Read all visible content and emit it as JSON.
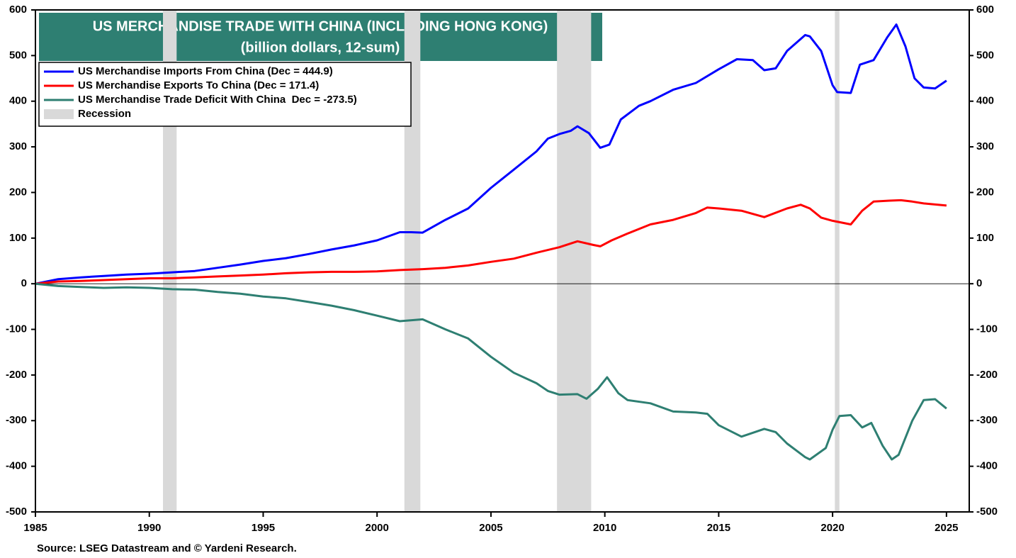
{
  "chart_data": {
    "type": "line",
    "title": "US MERCHANDISE TRADE WITH CHINA (INCLUDING HONG KONG)",
    "subtitle": "(billion dollars, 12-sum)",
    "source": "Source: LSEG Datastream and © Yardeni Research.",
    "xlim": [
      1985,
      2026
    ],
    "xticks": [
      1985,
      1990,
      1995,
      2000,
      2005,
      2010,
      2015,
      2020,
      2025
    ],
    "ylim": [
      -500,
      600
    ],
    "yticks": [
      -500,
      -400,
      -300,
      -200,
      -100,
      0,
      100,
      200,
      300,
      400,
      500,
      600
    ],
    "y2lim": [
      -500,
      600
    ],
    "y2ticks": [
      -500,
      -400,
      -300,
      -200,
      -100,
      0,
      100,
      200,
      300,
      400,
      500,
      600
    ],
    "recession_label": "Recession",
    "recession_color": "#d9d9d9",
    "recessions": [
      [
        1990.6,
        1991.2
      ],
      [
        2001.2,
        2001.9
      ],
      [
        2007.9,
        2009.4
      ],
      [
        2020.1,
        2020.3
      ]
    ],
    "series": [
      {
        "name": "US Merchandise Imports From China (Dec = 444.9)",
        "color": "#0000ff",
        "x": [
          1985,
          1986,
          1987,
          1988,
          1989,
          1990,
          1991,
          1992,
          1993,
          1994,
          1995,
          1996,
          1997,
          1998,
          1999,
          2000,
          2001,
          2001.5,
          2002,
          2003,
          2004,
          2005,
          2006,
          2007,
          2007.5,
          2008,
          2008.5,
          2008.8,
          2009.3,
          2009.8,
          2010.2,
          2010.7,
          2011.5,
          2012,
          2013,
          2014,
          2015,
          2015.8,
          2016.5,
          2017,
          2017.5,
          2018,
          2018.8,
          2019,
          2019.5,
          2020,
          2020.2,
          2020.8,
          2021.2,
          2021.8,
          2022.4,
          2022.8,
          2023.2,
          2023.6,
          2024,
          2024.5,
          2025
        ],
        "values": [
          0,
          10,
          14,
          17,
          20,
          22,
          25,
          28,
          35,
          42,
          50,
          56,
          65,
          75,
          84,
          95,
          113,
          113,
          112,
          140,
          165,
          210,
          250,
          290,
          318,
          328,
          335,
          345,
          330,
          298,
          305,
          360,
          390,
          400,
          425,
          440,
          470,
          492,
          490,
          468,
          472,
          510,
          545,
          542,
          510,
          435,
          420,
          418,
          480,
          490,
          540,
          568,
          520,
          450,
          430,
          428,
          444.9
        ]
      },
      {
        "name": "US Merchandise Exports To China (Dec = 171.4)",
        "color": "#ff0000",
        "x": [
          1985,
          1986,
          1987,
          1988,
          1989,
          1990,
          1991,
          1992,
          1993,
          1994,
          1995,
          1996,
          1997,
          1998,
          1999,
          2000,
          2001,
          2002,
          2003,
          2004,
          2005,
          2006,
          2007,
          2008,
          2008.8,
          2009.5,
          2009.8,
          2010.3,
          2011,
          2012,
          2013,
          2014,
          2014.5,
          2015,
          2016,
          2017,
          2018,
          2018.6,
          2019,
          2019.5,
          2020,
          2020.8,
          2021.3,
          2021.8,
          2022.5,
          2023,
          2023.5,
          2024,
          2025
        ],
        "values": [
          0,
          5,
          6,
          8,
          10,
          12,
          12,
          14,
          16,
          18,
          20,
          23,
          25,
          26,
          26,
          27,
          30,
          32,
          35,
          40,
          48,
          55,
          68,
          80,
          93,
          85,
          82,
          95,
          110,
          130,
          140,
          155,
          167,
          165,
          160,
          146,
          165,
          173,
          165,
          145,
          138,
          130,
          160,
          180,
          182,
          183,
          180,
          176,
          171.4
        ]
      },
      {
        "name": "US Merchandise Trade Deficit With China  Dec = -273.5)",
        "color": "#2e7f72",
        "x": [
          1985,
          1986,
          1987,
          1988,
          1989,
          1990,
          1991,
          1992,
          1993,
          1994,
          1995,
          1996,
          1997,
          1998,
          1999,
          2000,
          2001,
          2002,
          2003,
          2004,
          2005,
          2006,
          2007,
          2007.5,
          2008,
          2008.8,
          2009.2,
          2009.7,
          2010.1,
          2010.6,
          2011,
          2012,
          2013,
          2014,
          2014.5,
          2015,
          2016,
          2016.3,
          2017,
          2017.5,
          2018,
          2018.8,
          2019,
          2019.7,
          2020,
          2020.3,
          2020.8,
          2021.3,
          2021.7,
          2022.2,
          2022.6,
          2022.9,
          2023.5,
          2024,
          2024.5,
          2025
        ],
        "values": [
          0,
          -5,
          -7,
          -9,
          -8,
          -9,
          -12,
          -13,
          -18,
          -22,
          -28,
          -32,
          -40,
          -48,
          -58,
          -70,
          -82,
          -78,
          -100,
          -120,
          -160,
          -195,
          -218,
          -235,
          -243,
          -242,
          -252,
          -230,
          -205,
          -240,
          -255,
          -262,
          -280,
          -282,
          -285,
          -310,
          -335,
          -330,
          -318,
          -325,
          -350,
          -380,
          -385,
          -360,
          -320,
          -290,
          -288,
          -315,
          -305,
          -355,
          -385,
          -375,
          -300,
          -255,
          -253,
          -273.5
        ]
      }
    ]
  }
}
